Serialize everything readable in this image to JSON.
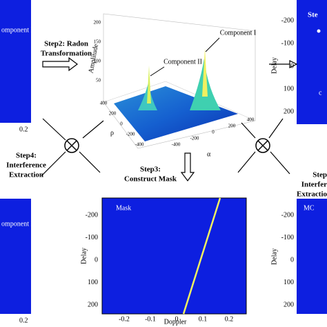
{
  "panels": {
    "top_left": {
      "label": "omponent I",
      "xtick": "0.2"
    },
    "radon_plot": {
      "zlabel": "Amplitude",
      "zticks": [
        "200",
        "150",
        "100",
        "50"
      ],
      "rho_label": "ρ",
      "alpha_label": "α",
      "rho_ticks": [
        "400",
        "200",
        "0",
        "-200",
        "-400"
      ],
      "alpha_ticks": [
        "-400",
        "-200",
        "0",
        "200",
        "400"
      ],
      "peak1": "Component I",
      "peak2": "Component II"
    },
    "top_right": {
      "label": "Ste",
      "sublabel": "c",
      "ylabel": "Delay",
      "yticks": [
        "-200",
        "-100",
        "0",
        "100",
        "200"
      ]
    },
    "mask": {
      "label": "Mask",
      "ylabel": "Delay",
      "xlabel": "Doppler",
      "yticks": [
        "-200",
        "-100",
        "0",
        "100",
        "200"
      ],
      "xticks": [
        "-0.2",
        "-0.1",
        "0",
        "0.1",
        "0.2"
      ]
    },
    "bottom_left": {
      "label": "omponent I",
      "xtick": "0.2"
    },
    "bottom_right": {
      "label": "MC",
      "ylabel": "Delay",
      "yticks": [
        "-200",
        "-100",
        "0",
        "100",
        "200"
      ]
    }
  },
  "steps": {
    "step2": [
      "Step2: Radon",
      "Transformation"
    ],
    "step3": [
      "Step3:",
      "Construct Mask"
    ],
    "step4": [
      "Step4:",
      "Interference",
      "Extraction"
    ],
    "step5": [
      "Step",
      "Interfer",
      "Extractio"
    ]
  }
}
